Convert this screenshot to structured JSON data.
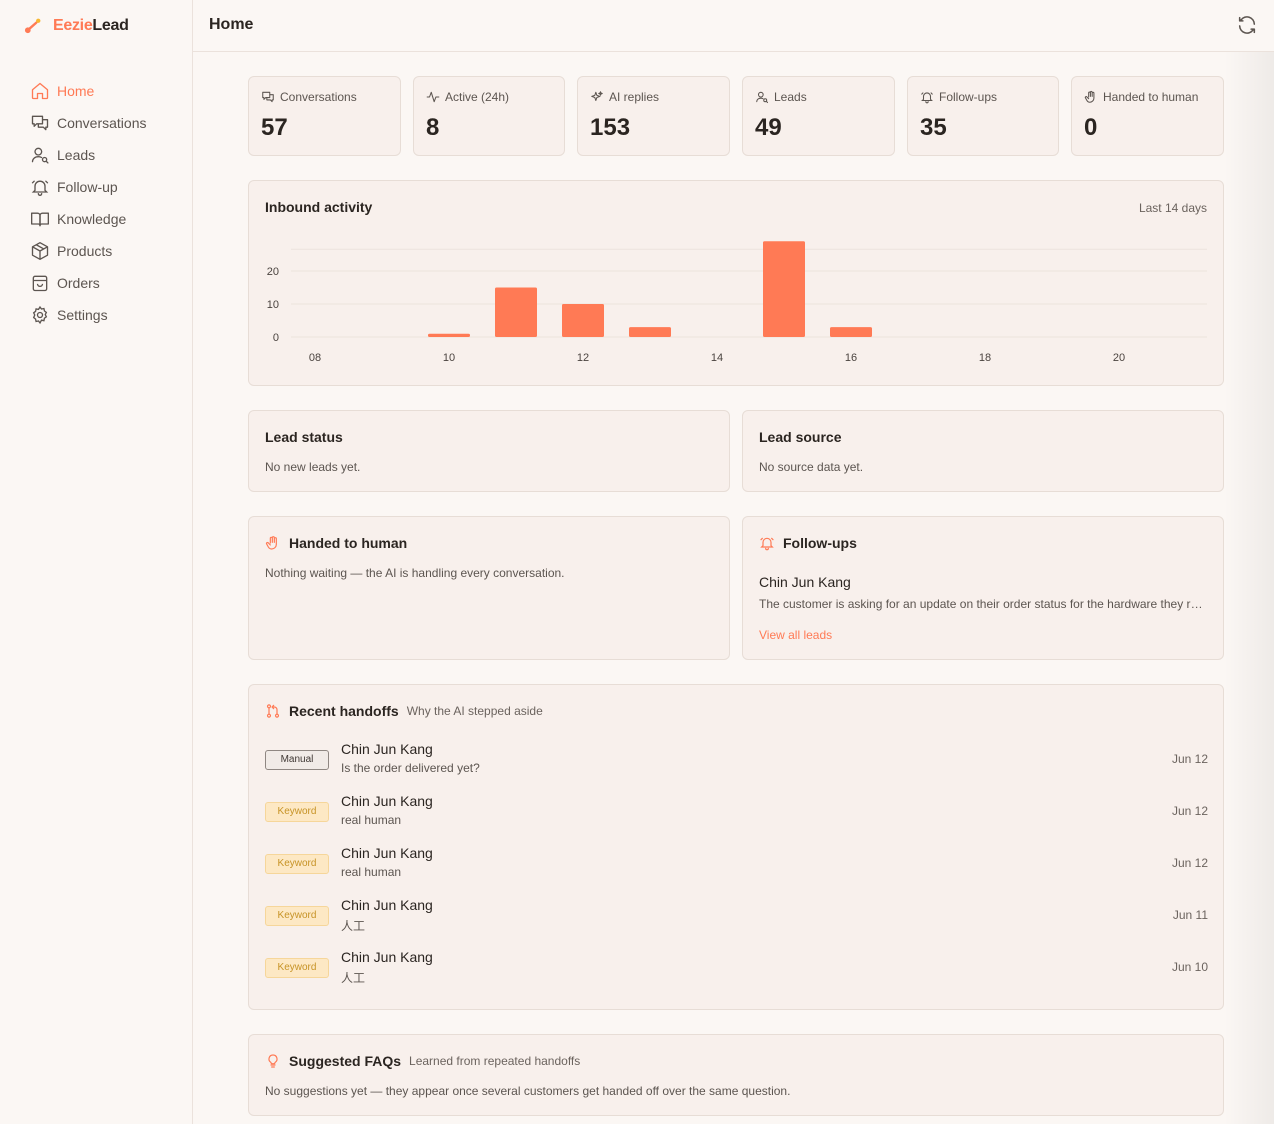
{
  "brand": {
    "part1": "Eezie",
    "part2": "Lead"
  },
  "sidebar": {
    "items": [
      {
        "label": "Home",
        "icon": "home-icon",
        "active": true
      },
      {
        "label": "Conversations",
        "icon": "chat-icon"
      },
      {
        "label": "Leads",
        "icon": "user-search-icon"
      },
      {
        "label": "Follow-up",
        "icon": "bell-icon"
      },
      {
        "label": "Knowledge",
        "icon": "book-icon"
      },
      {
        "label": "Products",
        "icon": "box-icon"
      },
      {
        "label": "Orders",
        "icon": "bag-icon"
      },
      {
        "label": "Settings",
        "icon": "gear-icon"
      }
    ]
  },
  "header": {
    "title": "Home"
  },
  "stats": [
    {
      "label": "Conversations",
      "value": "57",
      "icon": "chat-icon"
    },
    {
      "label": "Active (24h)",
      "value": "8",
      "icon": "activity-icon"
    },
    {
      "label": "AI replies",
      "value": "153",
      "icon": "sparkles-icon"
    },
    {
      "label": "Leads",
      "value": "49",
      "icon": "user-search-icon"
    },
    {
      "label": "Follow-ups",
      "value": "35",
      "icon": "bell-icon"
    },
    {
      "label": "Handed to human",
      "value": "0",
      "icon": "hand-icon"
    }
  ],
  "activity": {
    "title": "Inbound activity",
    "range": "Last 14 days"
  },
  "chart_data": {
    "type": "bar",
    "x": [
      8,
      9,
      10,
      11,
      12,
      13,
      14,
      15,
      16,
      17,
      18,
      19,
      20,
      21
    ],
    "values": [
      0,
      0,
      1,
      15,
      10,
      3,
      0,
      29,
      3,
      0,
      0,
      0,
      0,
      0
    ],
    "x_ticks": [
      "08",
      "10",
      "12",
      "14",
      "16",
      "18",
      "20"
    ],
    "y_ticks": [
      "0",
      "10",
      "20"
    ],
    "ylim": [
      0,
      30
    ],
    "color": "#ff7a55",
    "grid": true
  },
  "lead_status": {
    "title": "Lead status",
    "text": "No new leads yet."
  },
  "lead_source": {
    "title": "Lead source",
    "text": "No source data yet."
  },
  "handed": {
    "title": "Handed to human",
    "text": "Nothing waiting — the AI is handling every conversation."
  },
  "followups": {
    "title": "Follow-ups",
    "name": "Chin Jun Kang",
    "text": "The customer is asking for an update on their order status for the hardware they requested.",
    "link": "View all leads"
  },
  "handoffs": {
    "title": "Recent handoffs",
    "subtitle": "Why the AI stepped aside",
    "items": [
      {
        "tag": "Manual",
        "kind": "manual",
        "name": "Chin Jun Kang",
        "msg": "Is the order delivered yet?",
        "date": "Jun 12"
      },
      {
        "tag": "Keyword",
        "kind": "keyword",
        "name": "Chin Jun Kang",
        "msg": "real human",
        "date": "Jun 12"
      },
      {
        "tag": "Keyword",
        "kind": "keyword",
        "name": "Chin Jun Kang",
        "msg": "real human",
        "date": "Jun 12"
      },
      {
        "tag": "Keyword",
        "kind": "keyword",
        "name": "Chin Jun Kang",
        "msg": "人工",
        "date": "Jun 11"
      },
      {
        "tag": "Keyword",
        "kind": "keyword",
        "name": "Chin Jun Kang",
        "msg": "人工",
        "date": "Jun 10"
      }
    ]
  },
  "faqs": {
    "title": "Suggested FAQs",
    "subtitle": "Learned from repeated handoffs",
    "text": "No suggestions yet — they appear once several customers get handed off over the same question."
  },
  "colors": {
    "accent": "#ff7a55",
    "background": "#fbf7f4",
    "card": "#f8f0ec"
  }
}
